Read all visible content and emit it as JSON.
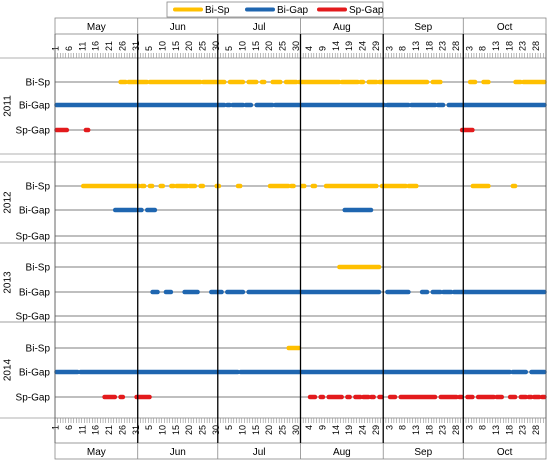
{
  "chart_data": {
    "type": "timeline",
    "months": [
      {
        "name": "May",
        "days": 31
      },
      {
        "name": "Jun",
        "days": 30
      },
      {
        "name": "Jul",
        "days": 31
      },
      {
        "name": "Aug",
        "days": 31
      },
      {
        "name": "Sep",
        "days": 30
      },
      {
        "name": "Oct",
        "days": 31
      }
    ],
    "day_labels": {
      "May": [
        1,
        6,
        11,
        16,
        21,
        26,
        31
      ],
      "Jun": [
        5,
        10,
        15,
        20,
        25,
        30
      ],
      "Jul": [
        5,
        10,
        15,
        20,
        25,
        30
      ],
      "Aug": [
        4,
        9,
        14,
        19,
        24,
        29
      ],
      "Sep": [
        3,
        8,
        13,
        18,
        23,
        28
      ],
      "Oct": [
        3,
        8,
        13,
        18,
        23,
        28
      ]
    },
    "series": [
      {
        "name": "Bi-Sp",
        "color": "#FFC000"
      },
      {
        "name": "Bi-Gap",
        "color": "#1F66B0"
      },
      {
        "name": "Sp-Gap",
        "color": "#E31A1C"
      }
    ],
    "years": [
      {
        "year": "2011",
        "rows": {
          "Bi-Sp": [
            [
              25,
              27
            ],
            [
              28,
              35
            ],
            [
              36,
              55
            ],
            [
              56,
              64
            ],
            [
              66,
              71
            ],
            [
              73,
              76
            ],
            [
              78,
              79
            ],
            [
              82,
              85
            ],
            [
              87,
              91
            ],
            [
              92,
              107
            ],
            [
              108,
              114
            ],
            [
              115,
              116
            ],
            [
              118,
              121
            ],
            [
              122,
              140
            ],
            [
              142,
              145
            ],
            [
              156,
              158
            ],
            [
              161,
              163
            ],
            [
              173,
              175
            ],
            [
              176,
              184
            ]
          ],
          "Bi-Gap": [
            [
              1,
              64
            ],
            [
              65,
              66
            ],
            [
              67,
              71
            ],
            [
              72,
              74
            ],
            [
              76,
              82
            ],
            [
              83,
              124
            ],
            [
              125,
              133
            ],
            [
              134,
              143
            ],
            [
              144,
              146
            ],
            [
              148,
              184
            ]
          ],
          "Sp-Gap": [
            [
              1,
              5
            ],
            [
              12,
              13
            ],
            [
              153,
              157
            ]
          ]
        }
      },
      {
        "year": "2012",
        "rows": {
          "Bi-Sp": [
            [
              11,
              32
            ],
            [
              33,
              34
            ],
            [
              36,
              37
            ],
            [
              40,
              41
            ],
            [
              44,
              45
            ],
            [
              46,
              50
            ],
            [
              51,
              53
            ],
            [
              55,
              56
            ],
            [
              61,
              62
            ],
            [
              69,
              70
            ],
            [
              81,
              88
            ],
            [
              89,
              90
            ],
            [
              93,
              94
            ],
            [
              97,
              98
            ],
            [
              102,
              121
            ],
            [
              123,
              132
            ],
            [
              133,
              136
            ],
            [
              157,
              163
            ],
            [
              172,
              173
            ]
          ],
          "Bi-Gap": [
            [
              23,
              31
            ],
            [
              32,
              33
            ],
            [
              35,
              38
            ],
            [
              109,
              119
            ]
          ],
          "Sp-Gap": []
        }
      },
      {
        "year": "2013",
        "rows": {
          "Bi-Sp": [
            [
              107,
              122
            ]
          ],
          "Bi-Gap": [
            [
              37,
              39
            ],
            [
              42,
              44
            ],
            [
              49,
              54
            ],
            [
              59,
              63
            ],
            [
              65,
              71
            ],
            [
              73,
              122
            ],
            [
              125,
              133
            ],
            [
              138,
              140
            ],
            [
              142,
              145
            ],
            [
              146,
              149
            ],
            [
              150,
              184
            ]
          ],
          "Sp-Gap": []
        }
      },
      {
        "year": "2014",
        "rows": {
          "Bi-Sp": [
            [
              88,
              92
            ]
          ],
          "Bi-Gap": [
            [
              1,
              9
            ],
            [
              10,
              69
            ],
            [
              70,
              171
            ],
            [
              172,
              177
            ],
            [
              179,
              184
            ]
          ],
          "Sp-Gap": [
            [
              19,
              23
            ],
            [
              25,
              26
            ],
            [
              31,
              36
            ],
            [
              96,
              98
            ],
            [
              100,
              101
            ],
            [
              103,
              108
            ],
            [
              110,
              111
            ],
            [
              113,
              115
            ],
            [
              116,
              118
            ],
            [
              119,
              120
            ],
            [
              122,
              123
            ],
            [
              126,
              128
            ],
            [
              130,
              143
            ],
            [
              145,
              151
            ],
            [
              152,
              153
            ],
            [
              155,
              157
            ],
            [
              159,
              165
            ],
            [
              166,
              168
            ],
            [
              171,
              173
            ],
            [
              175,
              177
            ],
            [
              178,
              179
            ],
            [
              180,
              182
            ],
            [
              183,
              184
            ]
          ]
        }
      }
    ],
    "legend": "top-center",
    "grid": true
  }
}
